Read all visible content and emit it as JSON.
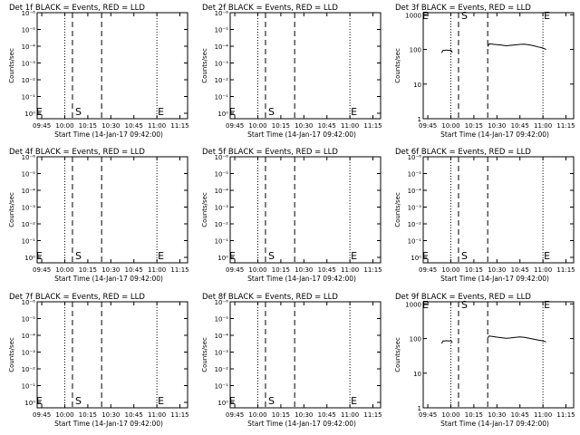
{
  "chart_data": [
    {
      "type": "line",
      "title": "Det 1f BLACK = Events, RED = LLD",
      "xlabel": "Start Time (14-Jan-17 09:42:00)",
      "ylabel": "Counts/sec",
      "scale": "log",
      "yticks": [
        "10⁰",
        "10⁻¹",
        "10⁻²",
        "10⁻³",
        "10⁻⁴",
        "10⁻⁵",
        "10⁻⁶"
      ],
      "xticks": [
        "09:45",
        "10:00",
        "10:15",
        "10:30",
        "10:45",
        "11:00",
        "11:15"
      ],
      "markers": {
        "start": "S",
        "end": "E"
      },
      "series": []
    },
    {
      "type": "line",
      "title": "Det 2f BLACK = Events, RED = LLD",
      "xlabel": "Start Time (14-Jan-17 09:42:00)",
      "ylabel": "Counts/sec",
      "scale": "log",
      "yticks": [
        "10⁰",
        "10⁻¹",
        "10⁻²",
        "10⁻³",
        "10⁻⁴",
        "10⁻⁵",
        "10⁻⁶"
      ],
      "xticks": [
        "09:45",
        "10:00",
        "10:15",
        "10:30",
        "10:45",
        "11:00",
        "11:15"
      ],
      "markers": {
        "start": "S",
        "end": "E"
      },
      "series": []
    },
    {
      "type": "line",
      "title": "Det 3f BLACK = Events, RED = LLD",
      "xlabel": "Start Time (14-Jan-17 09:42:00)",
      "ylabel": "Counts/sec",
      "scale": "log",
      "yticks": [
        "1",
        "10",
        "100",
        "1000"
      ],
      "xticks": [
        "09:45",
        "10:00",
        "10:15",
        "10:30",
        "10:45",
        "11:00",
        "11:15"
      ],
      "markers": {
        "start": "S",
        "end": "E"
      },
      "series": [
        {
          "color": "#000000",
          "x": [
            "09:54",
            "09:55",
            "09:56",
            "09:57",
            "09:58",
            "09:59",
            "10:00",
            "10:01"
          ],
          "y": [
            80,
            95,
            94,
            96,
            95,
            94,
            96,
            82
          ]
        },
        {
          "color": "#000000",
          "x": [
            "10:24",
            "10:25",
            "10:27",
            "10:30",
            "10:33",
            "10:36",
            "10:39",
            "10:42",
            "10:45",
            "10:48",
            "10:51",
            "10:54",
            "10:57",
            "11:00",
            "11:02"
          ],
          "y": [
            120,
            145,
            142,
            138,
            133,
            128,
            132,
            136,
            140,
            142,
            136,
            128,
            118,
            110,
            100
          ]
        }
      ]
    },
    {
      "type": "line",
      "title": "Det 4f BLACK = Events, RED = LLD",
      "xlabel": "Start Time (14-Jan-17 09:42:00)",
      "ylabel": "Counts/sec",
      "scale": "log",
      "yticks": [
        "10⁰",
        "10⁻¹",
        "10⁻²",
        "10⁻³",
        "10⁻⁴",
        "10⁻⁵",
        "10⁻⁶"
      ],
      "xticks": [
        "09:45",
        "10:00",
        "10:15",
        "10:30",
        "10:45",
        "11:00",
        "11:15"
      ],
      "markers": {
        "start": "S",
        "end": "E"
      },
      "series": []
    },
    {
      "type": "line",
      "title": "Det 5f BLACK = Events, RED = LLD",
      "xlabel": "Start Time (14-Jan-17 09:42:00)",
      "ylabel": "Counts/sec",
      "scale": "log",
      "yticks": [
        "10⁰",
        "10⁻¹",
        "10⁻²",
        "10⁻³",
        "10⁻⁴",
        "10⁻⁵",
        "10⁻⁶"
      ],
      "xticks": [
        "09:45",
        "10:00",
        "10:15",
        "10:30",
        "10:45",
        "11:00",
        "11:15"
      ],
      "markers": {
        "start": "S",
        "end": "E"
      },
      "series": []
    },
    {
      "type": "line",
      "title": "Det 6f BLACK = Events, RED = LLD",
      "xlabel": "Start Time (14-Jan-17 09:42:00)",
      "ylabel": "Counts/sec",
      "scale": "log",
      "yticks": [
        "10⁰",
        "10⁻¹",
        "10⁻²",
        "10⁻³",
        "10⁻⁴",
        "10⁻⁵",
        "10⁻⁶"
      ],
      "xticks": [
        "09:45",
        "10:00",
        "10:15",
        "10:30",
        "10:45",
        "11:00",
        "11:15"
      ],
      "markers": {
        "start": "S",
        "end": "E"
      },
      "series": []
    },
    {
      "type": "line",
      "title": "Det 7f BLACK = Events, RED = LLD",
      "xlabel": "Start Time (14-Jan-17 09:42:00)",
      "ylabel": "Counts/sec",
      "scale": "log",
      "yticks": [
        "10⁰",
        "10⁻¹",
        "10⁻²",
        "10⁻³",
        "10⁻⁴",
        "10⁻⁵",
        "10⁻⁶"
      ],
      "xticks": [
        "09:45",
        "10:00",
        "10:15",
        "10:30",
        "10:45",
        "11:00",
        "11:15"
      ],
      "markers": {
        "start": "S",
        "end": "E"
      },
      "series": []
    },
    {
      "type": "line",
      "title": "Det 8f BLACK = Events, RED = LLD",
      "xlabel": "Start Time (14-Jan-17 09:42:00)",
      "ylabel": "Counts/sec",
      "scale": "log",
      "yticks": [
        "10⁰",
        "10⁻¹",
        "10⁻²",
        "10⁻³",
        "10⁻⁴",
        "10⁻⁵",
        "10⁻⁶"
      ],
      "xticks": [
        "09:45",
        "10:00",
        "10:15",
        "10:30",
        "10:45",
        "11:00",
        "11:15"
      ],
      "markers": {
        "start": "S",
        "end": "E"
      },
      "series": []
    },
    {
      "type": "line",
      "title": "Det 9f BLACK = Events, RED = LLD",
      "xlabel": "Start Time (14-Jan-17 09:42:00)",
      "ylabel": "Counts/sec",
      "scale": "log",
      "yticks": [
        "1",
        "10",
        "100",
        "1000"
      ],
      "xticks": [
        "09:45",
        "10:00",
        "10:15",
        "10:30",
        "10:45",
        "11:00",
        "11:15"
      ],
      "markers": {
        "start": "S",
        "end": "E"
      },
      "series": [
        {
          "color": "#000000",
          "x": [
            "09:54",
            "09:55",
            "09:56",
            "09:57",
            "09:58",
            "09:59",
            "10:00",
            "10:01"
          ],
          "y": [
            72,
            86,
            85,
            87,
            86,
            85,
            88,
            76
          ]
        },
        {
          "color": "#000000",
          "x": [
            "10:24",
            "10:25",
            "10:27",
            "10:30",
            "10:33",
            "10:36",
            "10:39",
            "10:42",
            "10:45",
            "10:48",
            "10:51",
            "10:54",
            "10:57",
            "11:00",
            "11:02"
          ],
          "y": [
            105,
            118,
            115,
            110,
            106,
            102,
            104,
            108,
            112,
            108,
            102,
            96,
            90,
            86,
            80
          ]
        }
      ]
    }
  ]
}
